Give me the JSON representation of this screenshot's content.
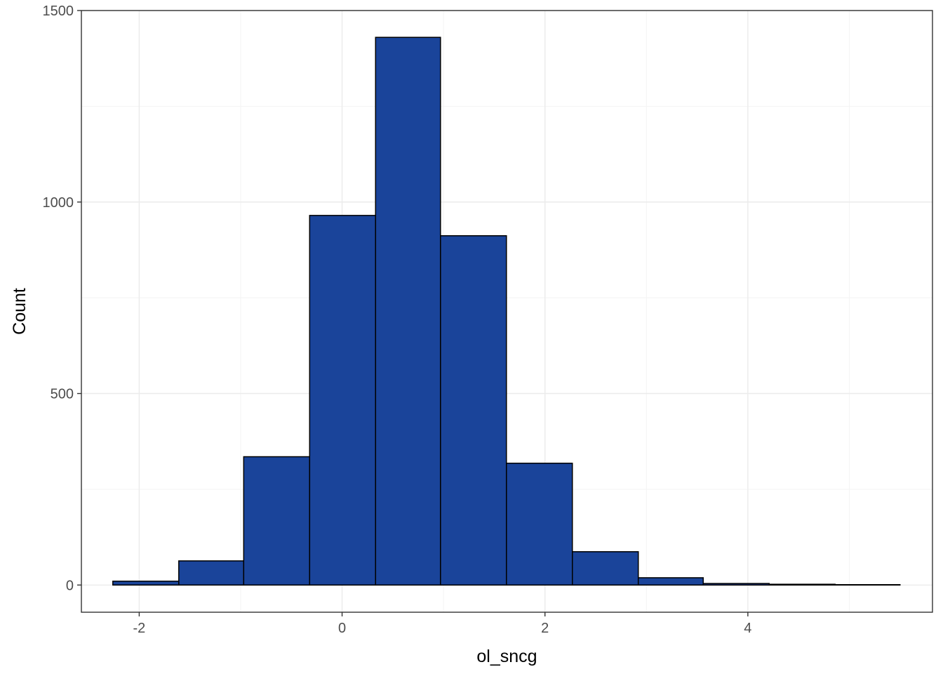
{
  "chart_data": {
    "type": "bar",
    "xlabel": "ol_sncg",
    "ylabel": "Count",
    "xlim": [
      -2.57,
      5.82
    ],
    "ylim": [
      -71,
      1500
    ],
    "x_ticks": [
      -2,
      0,
      2,
      4
    ],
    "y_ticks": [
      0,
      500,
      1000,
      1500
    ],
    "grid": true,
    "bars": [
      {
        "x0": -2.26,
        "x1": -1.61,
        "value": 10
      },
      {
        "x0": -1.61,
        "x1": -0.97,
        "value": 63
      },
      {
        "x0": -0.97,
        "x1": -0.32,
        "value": 335
      },
      {
        "x0": -0.32,
        "x1": 0.33,
        "value": 965
      },
      {
        "x0": 0.33,
        "x1": 0.97,
        "value": 1430
      },
      {
        "x0": 0.97,
        "x1": 1.62,
        "value": 912
      },
      {
        "x0": 1.62,
        "x1": 2.27,
        "value": 318
      },
      {
        "x0": 2.27,
        "x1": 2.92,
        "value": 87
      },
      {
        "x0": 2.92,
        "x1": 3.56,
        "value": 19
      },
      {
        "x0": 3.56,
        "x1": 4.21,
        "value": 4
      },
      {
        "x0": 4.21,
        "x1": 4.86,
        "value": 2
      },
      {
        "x0": 4.86,
        "x1": 5.5,
        "value": 1
      }
    ],
    "bar_color": "#1A449A"
  }
}
